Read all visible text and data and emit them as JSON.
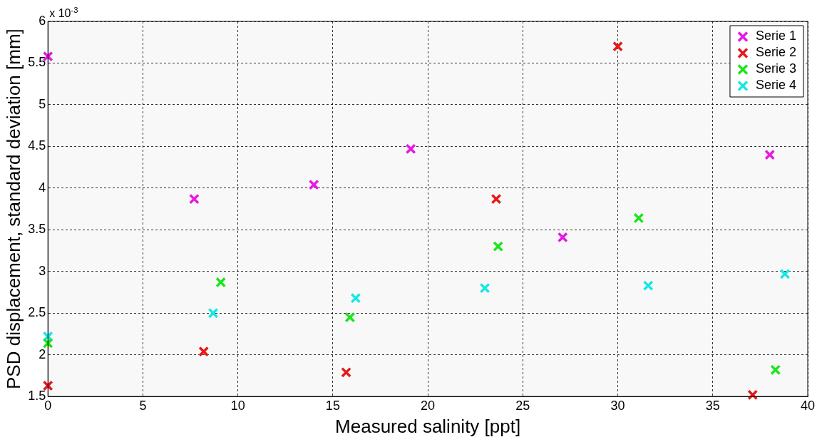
{
  "chart_data": {
    "type": "scatter",
    "xlabel": "Measured salinity [ppt]",
    "ylabel": "PSD displacement, standard deviation [mm]",
    "annotations": [
      "x 10$^{-3}$"
    ],
    "xlim": [
      0,
      40
    ],
    "xticks": [
      0,
      5,
      10,
      15,
      20,
      25,
      30,
      35,
      40
    ],
    "ylim": [
      1.5,
      6
    ],
    "yticks": [
      1.5,
      2,
      2.5,
      3,
      3.5,
      4,
      4.5,
      5,
      5.5,
      6
    ],
    "grid": true,
    "legend": "top right",
    "marker": "cross",
    "series": [
      {
        "name": "Serie 1",
        "color": "#e619e6",
        "x": [
          0,
          7.7,
          14.0,
          19.1,
          27.1,
          38.0
        ],
        "values": [
          5.58,
          3.87,
          4.04,
          4.47,
          3.41,
          4.4
        ]
      },
      {
        "name": "Serie 2",
        "color": "#e61919",
        "x": [
          0,
          8.2,
          15.7,
          23.6,
          30.0,
          37.1
        ],
        "values": [
          1.63,
          2.04,
          1.79,
          3.87,
          5.7,
          1.52
        ]
      },
      {
        "name": "Serie 3",
        "color": "#19e619",
        "x": [
          0,
          9.1,
          15.9,
          23.7,
          31.1,
          38.3
        ],
        "values": [
          2.14,
          2.87,
          2.45,
          3.3,
          3.64,
          1.82
        ]
      },
      {
        "name": "Serie 4",
        "color": "#19e6e6",
        "x": [
          0,
          8.7,
          16.2,
          23.0,
          31.6,
          38.8
        ],
        "values": [
          2.22,
          2.5,
          2.68,
          2.8,
          2.83,
          2.97
        ]
      }
    ]
  }
}
